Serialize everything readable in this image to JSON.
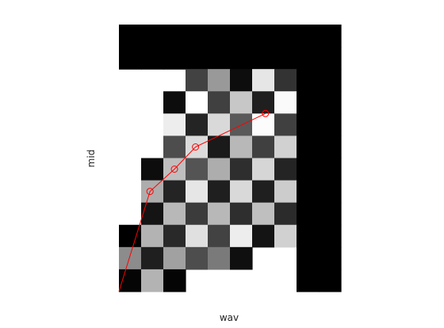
{
  "chart_data": {
    "type": "heatmap",
    "xlabel": "wav",
    "ylabel": "mid",
    "grid": false,
    "colormap": "gray",
    "legend": "none",
    "n_cols": 10,
    "n_rows": 12,
    "cells": [
      [
        0,
        0,
        0,
        0,
        0,
        0,
        0,
        0,
        0,
        0
      ],
      [
        0,
        0,
        0,
        0,
        0,
        0,
        0,
        0,
        0,
        0
      ],
      [
        null,
        null,
        null,
        0.26,
        0.6,
        0.05,
        0.9,
        0.2,
        0,
        0
      ],
      [
        null,
        null,
        0.05,
        1,
        0.25,
        0.78,
        0.12,
        0.98,
        0,
        0
      ],
      [
        null,
        null,
        0.93,
        0.14,
        0.85,
        0.35,
        0.99,
        0.25,
        0,
        0
      ],
      [
        null,
        null,
        0.3,
        0.86,
        0.1,
        0.72,
        0.25,
        0.82,
        0,
        0
      ],
      [
        null,
        0.05,
        0.75,
        0.33,
        0.68,
        0.18,
        0.84,
        0.14,
        0,
        0
      ],
      [
        null,
        0.68,
        0.14,
        0.9,
        0.12,
        0.85,
        0.12,
        0.8,
        0,
        0
      ],
      [
        null,
        0.08,
        0.72,
        0.23,
        0.72,
        0.18,
        0.75,
        0.17,
        0,
        0
      ],
      [
        0,
        0.7,
        0.16,
        0.88,
        0.26,
        0.93,
        0.08,
        0.82,
        0,
        0
      ],
      [
        0.55,
        0.12,
        0.63,
        0.3,
        0.48,
        0.06,
        null,
        null,
        0,
        0
      ],
      [
        0.02,
        0.7,
        0.02,
        null,
        null,
        null,
        null,
        null,
        0,
        0
      ]
    ],
    "series": [
      {
        "x": [
          0,
          1.4,
          2.5,
          3.45,
          6.6
        ],
        "y": [
          0,
          4.5,
          5.5,
          6.5,
          8.0
        ],
        "color": "#ff0000",
        "marker": "circle-open"
      }
    ]
  }
}
